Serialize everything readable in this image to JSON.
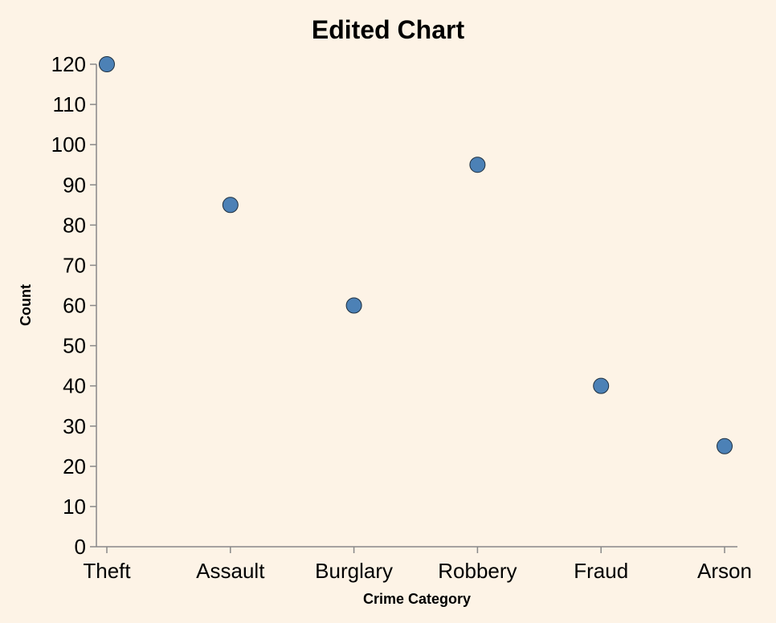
{
  "chart_data": {
    "type": "scatter",
    "title": "Edited Chart",
    "xlabel": "Crime Category",
    "ylabel": "Count",
    "categories": [
      "Theft",
      "Assault",
      "Burglary",
      "Robbery",
      "Fraud",
      "Arson"
    ],
    "series": [
      {
        "values": [
          120,
          85,
          60,
          95,
          40,
          25
        ]
      }
    ],
    "ylim": [
      0,
      120
    ],
    "yticks": [
      0,
      10,
      20,
      30,
      40,
      50,
      60,
      70,
      80,
      90,
      100,
      110,
      120
    ],
    "grid": false,
    "legend": "none"
  },
  "colors": {
    "background": "#fdf3e6",
    "point_fill": "#4c81b6",
    "point_stroke": "#1f2f3f",
    "axis": "#888888"
  }
}
